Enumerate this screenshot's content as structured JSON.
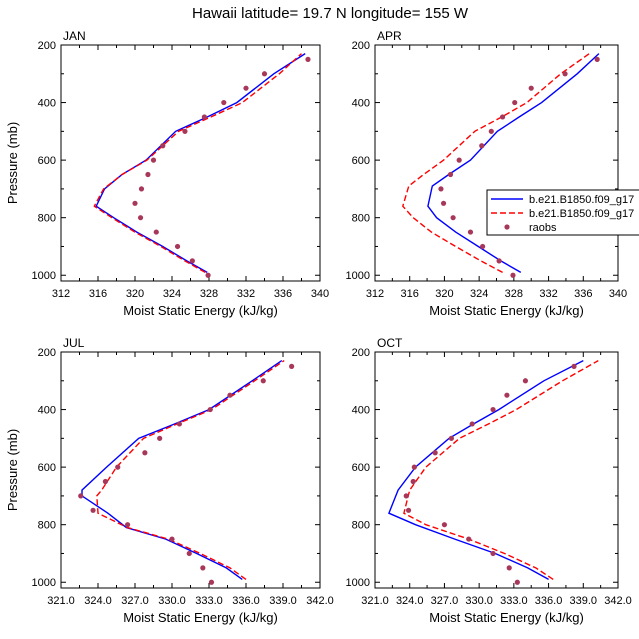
{
  "figure": {
    "title": "Hawaii  latitude= 19.7 N longitude= 155 W"
  },
  "legend": {
    "entries": [
      {
        "label": "b.e21.B1850.f09_g17",
        "color": "#0000ff",
        "style": "solid"
      },
      {
        "label": "b.e21.B1850.f09_g17",
        "color": "#ff0000",
        "style": "dashed"
      },
      {
        "label": "raobs",
        "color": "#a8385a",
        "style": "dot"
      }
    ],
    "placement": "right of APR panel"
  },
  "chart_data": [
    {
      "type": "line",
      "panel": "JAN",
      "xlabel": "Moist Static Energy (kJ/kg)",
      "ylabel": "Pressure (mb)",
      "xlim": [
        312,
        340
      ],
      "ylim": [
        200,
        1020
      ],
      "y_inverted": true,
      "xticks": [
        312,
        316,
        320,
        324,
        328,
        332,
        336,
        340
      ],
      "xtick_labels": [
        "312",
        "316",
        "320",
        "324",
        "328",
        "332",
        "336",
        "340"
      ],
      "yticks": [
        200,
        400,
        600,
        800,
        1000
      ],
      "ytick_labels": [
        "200",
        "400",
        "600",
        "800",
        "1000"
      ],
      "series": [
        {
          "name": "b.e21.B1850.f09_g17",
          "color": "#0000ff",
          "style": "solid",
          "x": [
            327.8,
            325.6,
            323.0,
            320.2,
            317.7,
            315.8,
            316.7,
            318.6,
            321.2,
            324.4,
            327.8,
            331.0,
            335.0,
            338.4
          ],
          "y": [
            990,
            950,
            900,
            850,
            800,
            760,
            700,
            650,
            600,
            500,
            450,
            400,
            300,
            230
          ]
        },
        {
          "name": "b.e21.B1850.f09_g17",
          "color": "#ff0000",
          "style": "dashed",
          "x": [
            327.6,
            325.4,
            322.8,
            320.0,
            317.5,
            315.6,
            316.6,
            318.6,
            321.3,
            324.7,
            328.2,
            331.6,
            335.6,
            338.0
          ],
          "y": [
            990,
            950,
            900,
            850,
            800,
            760,
            700,
            650,
            600,
            500,
            450,
            400,
            300,
            230
          ]
        },
        {
          "name": "raobs",
          "color": "#a8385a",
          "style": "dot",
          "x": [
            327.9,
            326.2,
            324.6,
            322.3,
            320.6,
            320.0,
            320.7,
            321.4,
            322.0,
            323.0,
            325.4,
            327.5,
            329.6,
            332.0,
            334.0,
            338.7
          ],
          "y": [
            1000,
            950,
            900,
            850,
            800,
            750,
            700,
            650,
            600,
            550,
            500,
            450,
            400,
            350,
            300,
            250
          ]
        }
      ]
    },
    {
      "type": "line",
      "panel": "APR",
      "xlabel": "Moist Static Energy (kJ/kg)",
      "ylabel": "",
      "xlim": [
        312,
        340
      ],
      "ylim": [
        200,
        1020
      ],
      "y_inverted": true,
      "xticks": [
        312,
        316,
        320,
        324,
        328,
        332,
        336,
        340
      ],
      "xtick_labels": [
        "312",
        "316",
        "320",
        "324",
        "328",
        "332",
        "336",
        "340"
      ],
      "yticks": [
        200,
        400,
        600,
        800,
        1000
      ],
      "ytick_labels": [
        "200",
        "400",
        "600",
        "800",
        "1000"
      ],
      "series": [
        {
          "name": "b.e21.B1850.f09_g17",
          "color": "#0000ff",
          "style": "solid",
          "x": [
            328.8,
            326.5,
            323.9,
            321.3,
            319.1,
            318.1,
            318.6,
            320.5,
            323.0,
            326.1,
            328.6,
            331.2,
            335.3,
            337.8
          ],
          "y": [
            990,
            950,
            900,
            850,
            800,
            760,
            690,
            650,
            600,
            500,
            450,
            400,
            300,
            230
          ]
        },
        {
          "name": "b.e21.B1850.f09_g17",
          "color": "#ff0000",
          "style": "dashed",
          "x": [
            326.7,
            324.2,
            321.3,
            318.5,
            316.4,
            315.2,
            315.9,
            317.6,
            319.9,
            323.5,
            326.6,
            329.5,
            333.4,
            336.7
          ],
          "y": [
            990,
            950,
            900,
            850,
            800,
            760,
            690,
            650,
            600,
            500,
            450,
            400,
            300,
            230
          ]
        },
        {
          "name": "raobs",
          "color": "#a8385a",
          "style": "dot",
          "x": [
            327.9,
            326.3,
            324.4,
            323.0,
            321.0,
            319.9,
            319.6,
            320.7,
            321.7,
            324.3,
            325.4,
            326.7,
            328.1,
            330.0,
            333.9,
            337.6
          ],
          "y": [
            1000,
            950,
            900,
            850,
            800,
            750,
            700,
            650,
            600,
            550,
            500,
            450,
            400,
            350,
            300,
            250
          ]
        }
      ]
    },
    {
      "type": "line",
      "panel": "JUL",
      "xlabel": "Moist Static Energy (kJ/kg)",
      "ylabel": "Pressure (mb)",
      "xlim": [
        321,
        342
      ],
      "ylim": [
        200,
        1020
      ],
      "y_inverted": true,
      "xticks": [
        321,
        324,
        327,
        330,
        333,
        336,
        339,
        342
      ],
      "xtick_labels": [
        "321.0",
        "324.0",
        "327.0",
        "330.0",
        "333.0",
        "336.0",
        "339.0",
        "342.0"
      ],
      "yticks": [
        200,
        400,
        600,
        800,
        1000
      ],
      "ytick_labels": [
        "200",
        "400",
        "600",
        "800",
        "1000"
      ],
      "series": [
        {
          "name": "b.e21.B1850.f09_g17",
          "color": "#0000ff",
          "style": "solid",
          "x": [
            335.7,
            334.4,
            332.0,
            329.5,
            326.3,
            324.8,
            322.7,
            322.7,
            324.7,
            327.3,
            330.2,
            333.0,
            336.5,
            338.9
          ],
          "y": [
            990,
            950,
            900,
            850,
            810,
            760,
            700,
            680,
            600,
            500,
            450,
            400,
            300,
            230
          ]
        },
        {
          "name": "b.e21.B1850.f09_g17",
          "color": "#ff0000",
          "style": "dashed",
          "x": [
            336.0,
            334.7,
            332.3,
            329.7,
            326.4,
            324.0,
            323.9,
            324.3,
            325.5,
            327.7,
            330.4,
            333.2,
            336.7,
            339.1
          ],
          "y": [
            990,
            950,
            900,
            850,
            810,
            760,
            700,
            680,
            600,
            500,
            450,
            400,
            300,
            230
          ]
        },
        {
          "name": "raobs",
          "color": "#a8385a",
          "style": "dot",
          "x": [
            333.2,
            332.5,
            331.4,
            330.0,
            326.4,
            323.6,
            322.6,
            324.6,
            325.6,
            327.8,
            329.0,
            330.6,
            333.1,
            334.7,
            337.4,
            339.7
          ],
          "y": [
            1000,
            950,
            900,
            850,
            800,
            750,
            700,
            650,
            600,
            550,
            500,
            450,
            400,
            350,
            300,
            250
          ]
        }
      ]
    },
    {
      "type": "line",
      "panel": "OCT",
      "xlabel": "Moist Static Energy (kJ/kg)",
      "ylabel": "",
      "xlim": [
        321,
        342
      ],
      "ylim": [
        200,
        1020
      ],
      "y_inverted": true,
      "xticks": [
        321,
        324,
        327,
        330,
        333,
        336,
        339,
        342
      ],
      "xtick_labels": [
        "321.0",
        "324.0",
        "327.0",
        "330.0",
        "333.0",
        "336.0",
        "339.0",
        "342.0"
      ],
      "yticks": [
        200,
        400,
        600,
        800,
        1000
      ],
      "ytick_labels": [
        "200",
        "400",
        "600",
        "800",
        "1000"
      ],
      "series": [
        {
          "name": "b.e21.B1850.f09_g17",
          "color": "#0000ff",
          "style": "solid",
          "x": [
            336.0,
            334.2,
            331.4,
            327.9,
            324.5,
            322.2,
            323.0,
            324.5,
            327.4,
            329.5,
            331.7,
            335.6,
            339.0
          ],
          "y": [
            990,
            950,
            900,
            850,
            800,
            760,
            680,
            600,
            500,
            450,
            400,
            300,
            230
          ]
        },
        {
          "name": "b.e21.B1850.f09_g17",
          "color": "#ff0000",
          "style": "dashed",
          "x": [
            336.4,
            334.9,
            332.2,
            329.1,
            325.4,
            323.5,
            324.0,
            325.4,
            328.3,
            330.8,
            333.2,
            337.2,
            340.3
          ],
          "y": [
            990,
            950,
            900,
            850,
            800,
            760,
            680,
            600,
            500,
            450,
            400,
            300,
            230
          ]
        },
        {
          "name": "raobs",
          "color": "#a8385a",
          "style": "dot",
          "x": [
            333.3,
            332.6,
            331.2,
            329.1,
            327.0,
            323.9,
            323.7,
            324.3,
            324.4,
            326.2,
            327.6,
            329.4,
            331.2,
            332.4,
            334.0,
            338.2
          ],
          "y": [
            1000,
            950,
            900,
            850,
            800,
            750,
            700,
            650,
            600,
            550,
            500,
            450,
            400,
            350,
            300,
            250
          ]
        }
      ]
    }
  ]
}
